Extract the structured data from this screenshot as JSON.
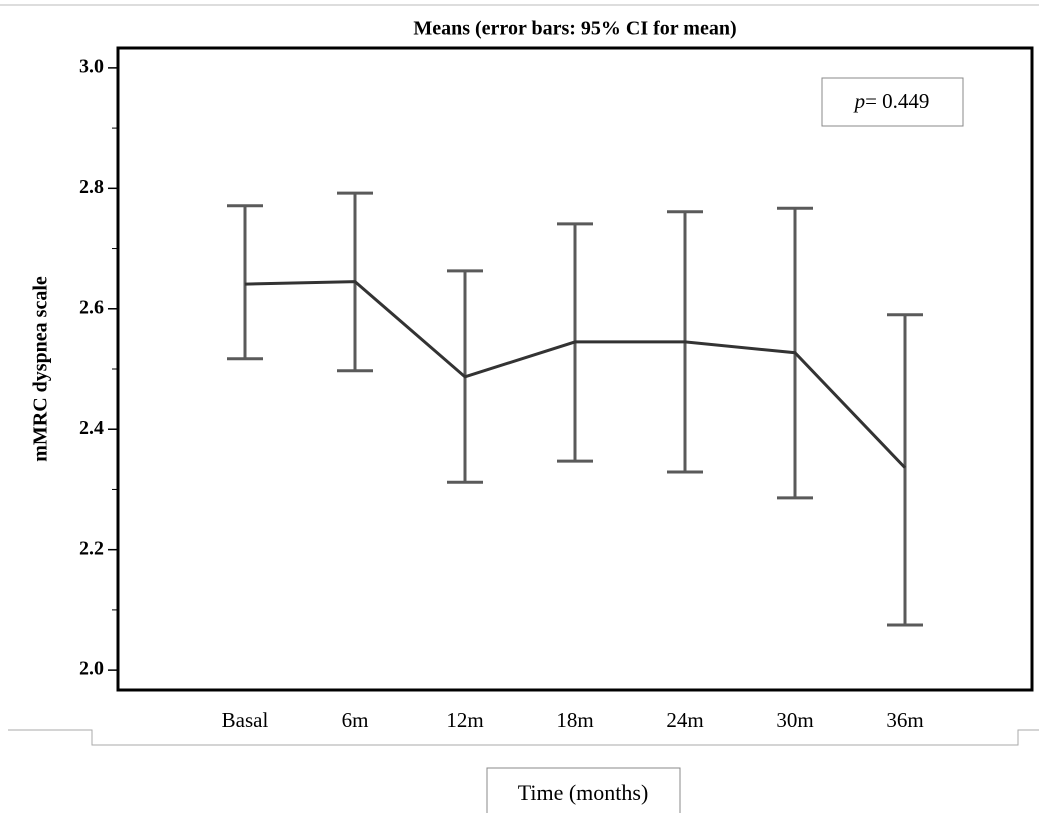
{
  "chart_data": {
    "type": "line",
    "title": "Means  (error bars: 95% CI for mean)",
    "y_label": "mMRC dyspnea scale",
    "x_label": "Time (months)",
    "annotation": {
      "italic": "p",
      "text": "= 0.449"
    },
    "categories": [
      "Basal",
      "6m",
      "12m",
      "18m",
      "24m",
      "30m",
      "36m"
    ],
    "values": [
      2.641,
      2.645,
      2.487,
      2.545,
      2.545,
      2.527,
      2.336
    ],
    "ci_lower": [
      2.517,
      2.497,
      2.312,
      2.347,
      2.329,
      2.286,
      2.075
    ],
    "ci_upper": [
      2.771,
      2.792,
      2.663,
      2.741,
      2.761,
      2.767,
      2.59
    ],
    "color": "#333333",
    "error_color": "#5a5a5a",
    "ylim": [
      1.967,
      3.033
    ],
    "yticks": [
      {
        "value": 2.0,
        "label": "2.0"
      },
      2.2,
      2.4,
      2.6,
      2.8,
      {
        "value": 3.0,
        "label": "3.0"
      }
    ],
    "minor_yticks": [
      2.1,
      2.3,
      2.5,
      2.7,
      2.9
    ]
  }
}
